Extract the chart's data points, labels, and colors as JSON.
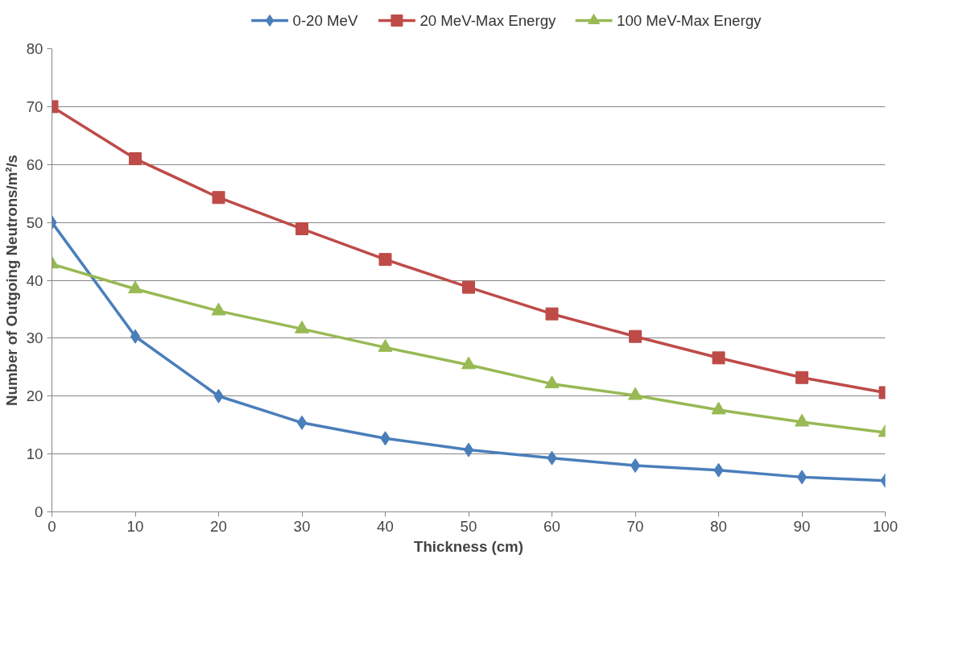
{
  "chart_data": {
    "type": "line",
    "xlabel": "Thickness (cm)",
    "ylabel": "Number of Outgoing Neutrons/m²/s",
    "x": [
      0,
      10,
      20,
      30,
      40,
      50,
      60,
      70,
      80,
      90,
      100
    ],
    "series": [
      {
        "name": "0-20 MeV",
        "color": "#4a7ebb",
        "marker": "diamond",
        "values": [
          50,
          30.3,
          20,
          15.4,
          12.7,
          10.7,
          9.3,
          8.0,
          7.2,
          6.0,
          5.4
        ]
      },
      {
        "name": "20 MeV-Max Energy",
        "color": "#be4b48",
        "marker": "square",
        "values": [
          70,
          61,
          54.3,
          48.9,
          43.6,
          38.8,
          34.2,
          30.3,
          26.6,
          23.2,
          20.6
        ]
      },
      {
        "name": "100 MeV-Max Energy",
        "color": "#98b954",
        "marker": "triangle",
        "values": [
          42.8,
          38.5,
          34.7,
          31.6,
          28.4,
          25.4,
          22.1,
          20.1,
          17.6,
          15.5,
          13.7
        ]
      }
    ],
    "xlim": [
      0,
      100
    ],
    "ylim": [
      0,
      80
    ],
    "xticks": [
      0,
      10,
      20,
      30,
      40,
      50,
      60,
      70,
      80,
      90,
      100
    ],
    "yticks": [
      0,
      10,
      20,
      30,
      40,
      50,
      60,
      70,
      80
    ],
    "grid": "y",
    "legend": "top",
    "line_style": "solid"
  }
}
